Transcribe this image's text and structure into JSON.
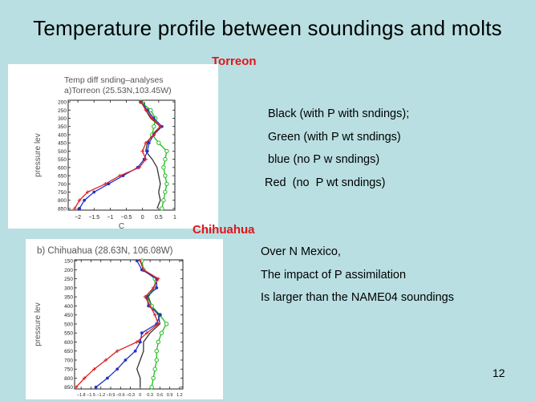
{
  "slide": {
    "title": "Temperature profile between soundings and molts",
    "page_number": "12",
    "torreon_heading": "Torreon",
    "chihuahua_heading": "Chihuahua",
    "legend_lines": [
      "Black (with P with sndings);",
      "Green (with P wt sndings)",
      "blue (no P w sndings)",
      "Red  (no  P wt sndings)"
    ],
    "notes": [
      "Over N Mexico,",
      "The impact of P assimilation",
      "Is larger than the NAME04 soundings"
    ]
  },
  "colors": {
    "background": "#b9dfe2",
    "heading_red": "#e0141a",
    "black_series": "#333333",
    "green_series": "#22bb22",
    "blue_series": "#2233cc",
    "red_series": "#dd2222"
  },
  "chart_data": [
    {
      "type": "line",
      "title": "Temp diff snding–analyses",
      "subtitle": "a)Torreon (25.53N,103.45W)",
      "xlabel": "C",
      "ylabel": "pressure lev",
      "xlim": [
        -2.3,
        1.0
      ],
      "ylim": [
        860,
        190
      ],
      "xticks": [
        -2,
        -1.5,
        -1,
        -0.5,
        0,
        0.5,
        1
      ],
      "xtick_labels": [
        "−2",
        "−1.5",
        "−1",
        "−0.5",
        "0",
        "0.5",
        "1"
      ],
      "yticks": [
        200,
        250,
        300,
        350,
        400,
        450,
        500,
        550,
        600,
        650,
        700,
        750,
        800,
        850
      ],
      "y": [
        200,
        250,
        300,
        350,
        400,
        450,
        500,
        550,
        600,
        650,
        700,
        750,
        800,
        850
      ],
      "series": [
        {
          "color": "black",
          "markers": "none",
          "values": [
            0.05,
            0.1,
            0.25,
            0.55,
            0.3,
            0.15,
            0.1,
            0.3,
            0.45,
            0.5,
            0.55,
            0.5,
            0.55,
            0.45
          ]
        },
        {
          "color": "green",
          "markers": "circle",
          "values": [
            -0.05,
            0.25,
            0.4,
            0.35,
            0.3,
            0.5,
            0.75,
            0.7,
            0.65,
            0.7,
            0.75,
            0.7,
            0.65,
            0.6
          ]
        },
        {
          "color": "blue",
          "markers": "dot",
          "values": [
            -0.05,
            0.15,
            0.35,
            0.6,
            0.35,
            0.2,
            0.15,
            0.05,
            -0.15,
            -0.6,
            -1.05,
            -1.5,
            -1.8,
            -1.95
          ]
        },
        {
          "color": "red",
          "markers": "plus",
          "values": [
            -0.05,
            0.1,
            0.3,
            0.55,
            0.35,
            0.1,
            0.0,
            0.1,
            -0.1,
            -0.7,
            -1.15,
            -1.7,
            -1.95,
            -2.1
          ]
        }
      ]
    },
    {
      "type": "line",
      "title": "",
      "subtitle": "b) Chihuahua (28.63N, 106.08W)",
      "xlabel": "",
      "ylabel": "pressure lev",
      "xlim": [
        -2.0,
        1.3
      ],
      "ylim": [
        860,
        145
      ],
      "xticks": [
        -1.8,
        -1.5,
        -1.2,
        -0.9,
        -0.6,
        -0.3,
        0,
        0.3,
        0.6,
        0.9,
        1.2
      ],
      "xtick_labels": [
        "−1.8",
        "−1.5",
        "−1.2",
        "−0.9",
        "−0.6",
        "−0.3",
        "0",
        "0.3",
        "0.6",
        "0.9",
        "1.2"
      ],
      "yticks": [
        150,
        200,
        250,
        300,
        350,
        400,
        450,
        500,
        550,
        600,
        650,
        700,
        750,
        800,
        850
      ],
      "y": [
        150,
        200,
        250,
        300,
        350,
        400,
        450,
        500,
        550,
        600,
        650,
        700,
        750,
        800,
        850
      ],
      "series": [
        {
          "color": "black",
          "markers": "none",
          "values": [
            0.0,
            0.1,
            0.55,
            0.4,
            0.25,
            0.35,
            0.55,
            0.6,
            0.3,
            0.1,
            0.1,
            0.0,
            -0.1,
            0.0,
            0.0
          ]
        },
        {
          "color": "green",
          "markers": "circle",
          "values": [
            0.05,
            0.1,
            0.45,
            0.45,
            0.2,
            0.35,
            0.6,
            0.8,
            0.65,
            0.55,
            0.5,
            0.5,
            0.45,
            0.4,
            0.35
          ]
        },
        {
          "color": "blue",
          "markers": "dot",
          "values": [
            -0.1,
            0.05,
            0.5,
            0.5,
            0.2,
            0.25,
            0.6,
            0.5,
            0.05,
            0.0,
            -0.15,
            -0.45,
            -0.7,
            -1.0,
            -1.35
          ]
        },
        {
          "color": "red",
          "markers": "plus",
          "values": [
            0.0,
            0.1,
            0.55,
            0.4,
            0.15,
            0.3,
            0.45,
            0.55,
            0.2,
            -0.1,
            -0.7,
            -1.05,
            -1.4,
            -1.7,
            -1.95
          ]
        }
      ]
    }
  ]
}
